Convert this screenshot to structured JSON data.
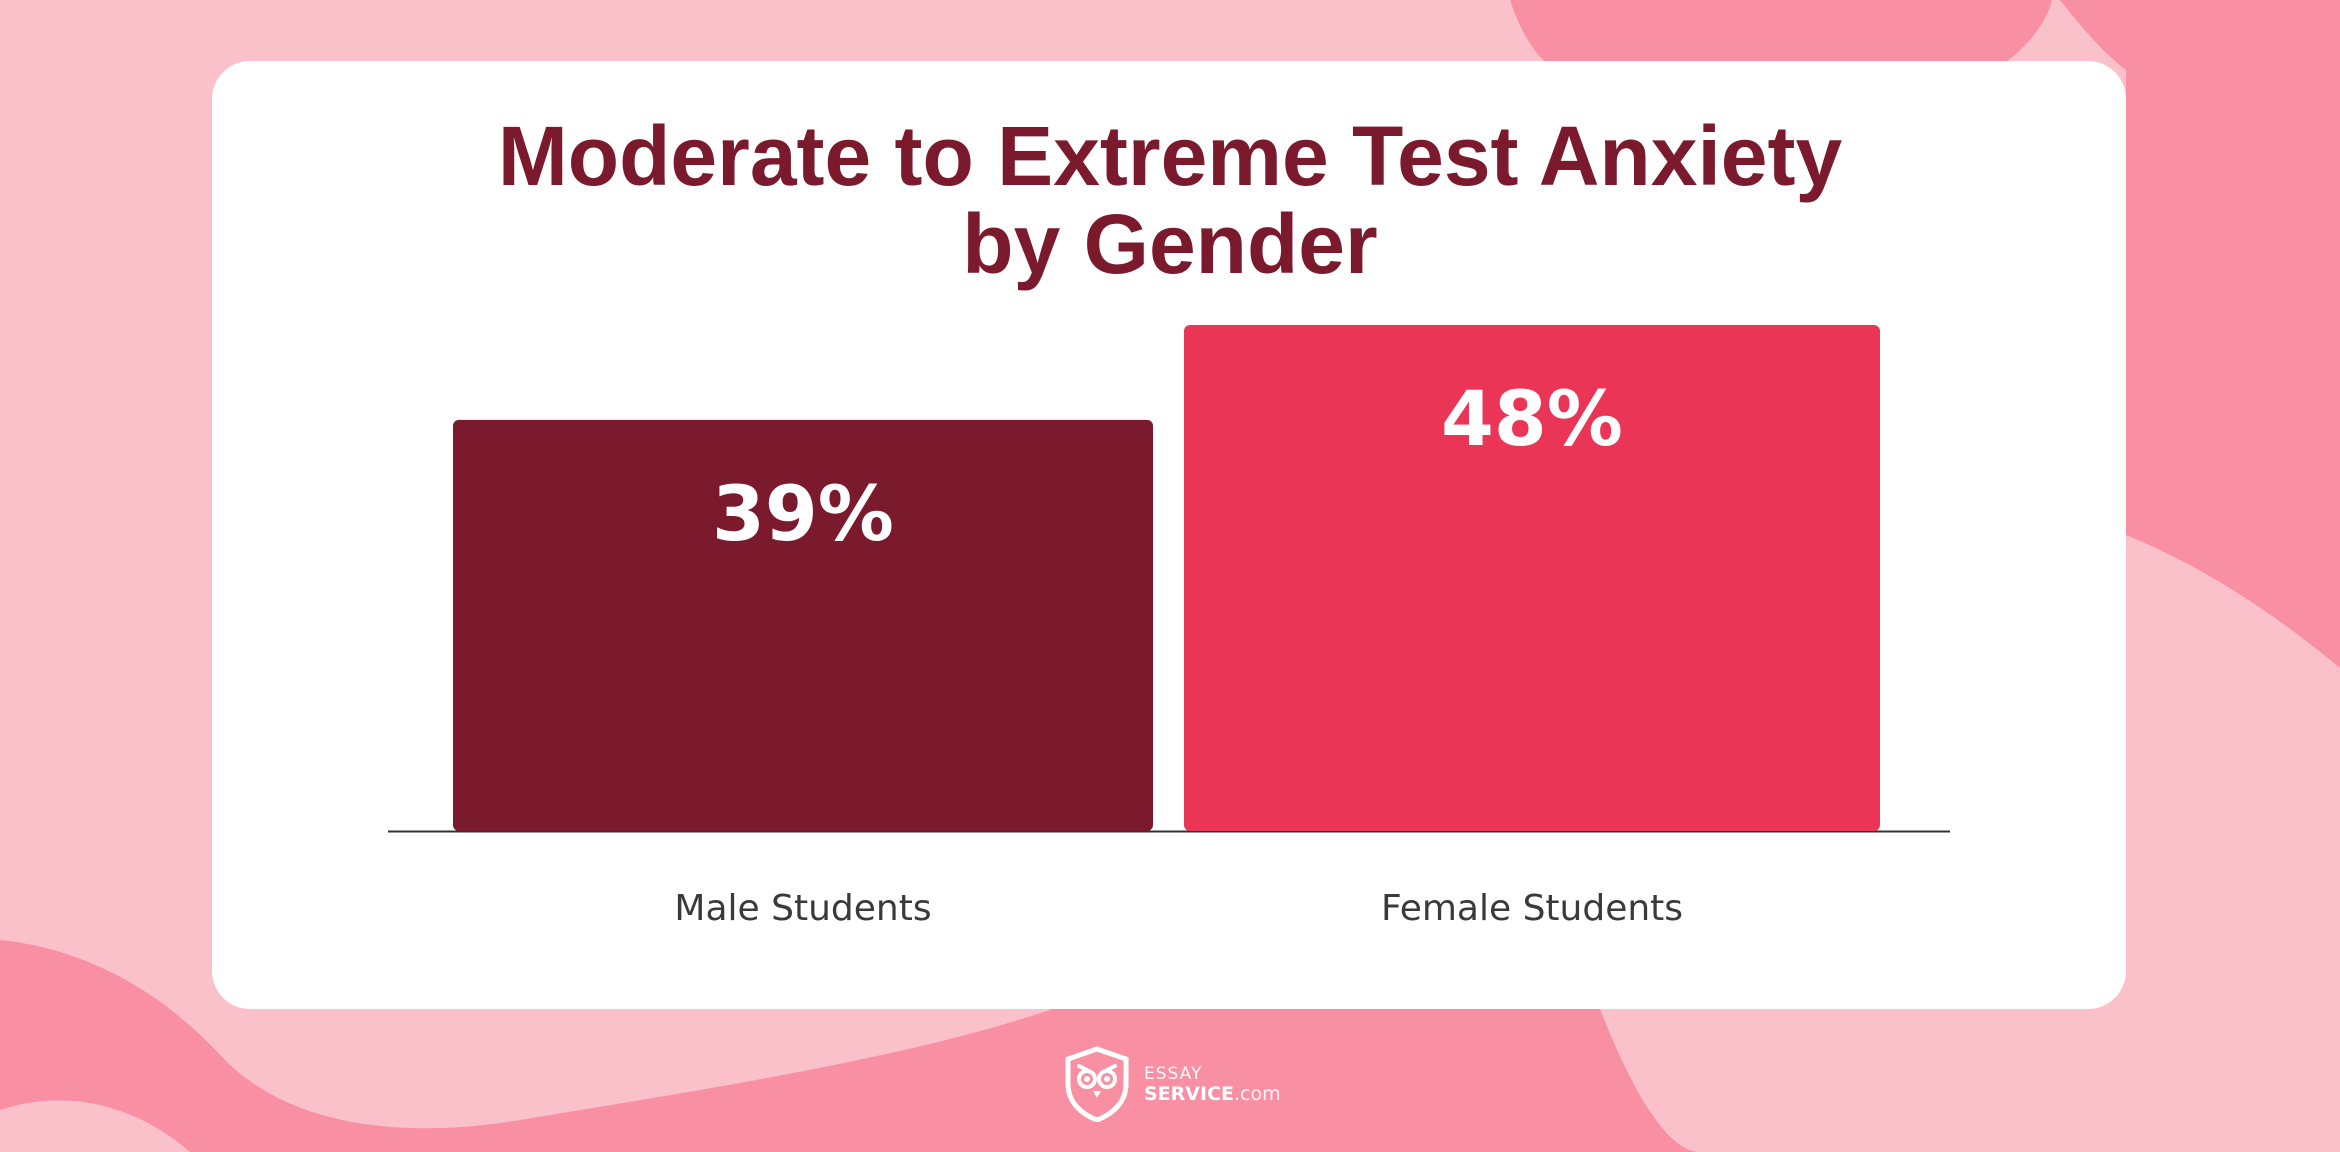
{
  "title_lines": [
    "Moderate to Extreme Test Anxiety",
    "by Gender"
  ],
  "chart_data": {
    "type": "bar",
    "title": "Moderate to Extreme Test Anxiety by Gender",
    "categories": [
      "Male Students",
      "Female Students"
    ],
    "values": [
      39,
      48
    ],
    "value_labels": [
      "39%",
      "48%"
    ],
    "unit": "%",
    "colors": [
      "#7b1a2c",
      "#eb3556"
    ],
    "ylim": [
      0,
      48
    ],
    "grid": false,
    "legend": "none"
  },
  "brand": {
    "line1": "ESSAY",
    "line2": "SERVICE",
    "domain": ".com",
    "icon": "owl-shield-icon"
  },
  "colors": {
    "background": "#fbc1cb",
    "blob": "#f98fa2",
    "title": "#7b1a2c",
    "card": "#ffffff"
  }
}
